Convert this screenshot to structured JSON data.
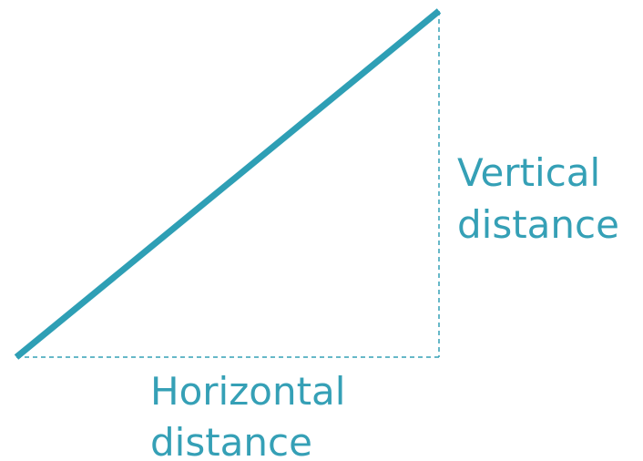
{
  "diagram": {
    "vertical_label": [
      "Vertical",
      "distance"
    ],
    "horizontal_label": [
      "Horizontal",
      "distance"
    ]
  }
}
